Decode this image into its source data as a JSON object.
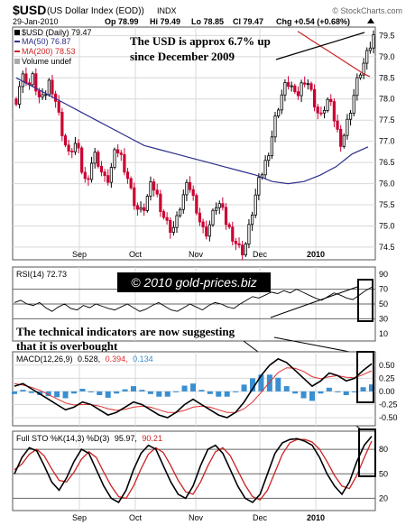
{
  "header": {
    "symbol": "$USD",
    "name": "(US Dollar Index (EOD))",
    "exchange": "INDX",
    "source": "© StockCharts.com",
    "date": "29-Jan-2010",
    "open": "Op 78.99",
    "high": "Hi 79.49",
    "low": "Lo 78.85",
    "close": "Cl 79.47",
    "change": "Chg +0.54 (+0.68%)"
  },
  "legend": {
    "price": "$USD (Daily) 79.47",
    "ma50": "MA(50) 76.87",
    "ma200": "MA(200) 78.53",
    "volume": "Volume undef"
  },
  "annotations": {
    "usd_up": "The USD is approx 6.7% up since December 2009",
    "copyright": "© 2010 gold-prices.biz",
    "overbought": "The technical indicators are now suggesting that it is overbought"
  },
  "indicator_labels": {
    "rsi": "RSI(14) 72.73",
    "macd_name": "MACD(12,26,9)",
    "macd_v1": "0.528,",
    "macd_v2": "0.394,",
    "macd_v3": "0.134",
    "sto_name": "Full STO %K(14,3) %D(3)",
    "sto_v1": "95.97,",
    "sto_v2": "90.21"
  },
  "colors": {
    "up": "#000000",
    "down": "#cc0033",
    "ma50": "#2b2e8a",
    "ma200": "#cc2222",
    "histogram": "#3a8fd0",
    "macd_signal": "#e03030",
    "grid": "#d8d8d8"
  },
  "chart_data": [
    {
      "type": "candlestick",
      "x_labels": [
        "Sep",
        "Oct",
        "Nov",
        "Dec",
        "2010"
      ],
      "y_ticks": [
        "79.5",
        "79.0",
        "78.5",
        "78.0",
        "77.5",
        "77.0",
        "76.5",
        "76.0",
        "75.5",
        "75.0",
        "74.5"
      ],
      "ylim": [
        74.2,
        79.7
      ],
      "close_path": [
        78.0,
        78.4,
        78.6,
        78.3,
        78.5,
        78.2,
        77.9,
        78.1,
        78.4,
        78.2,
        77.8,
        77.3,
        76.9,
        76.6,
        77.0,
        76.8,
        76.3,
        76.0,
        76.4,
        76.7,
        76.5,
        76.2,
        76.0,
        76.3,
        76.7,
        76.8,
        76.5,
        76.2,
        75.8,
        75.5,
        75.3,
        75.4,
        75.7,
        76.0,
        75.8,
        75.5,
        75.2,
        75.0,
        74.9,
        75.1,
        75.5,
        75.8,
        76.0,
        75.7,
        75.4,
        75.0,
        74.8,
        75.0,
        75.3,
        75.6,
        75.4,
        75.1,
        74.9,
        74.7,
        74.5,
        74.4,
        74.6,
        75.1,
        75.6,
        76.0,
        76.3,
        76.6,
        77.0,
        77.5,
        77.9,
        78.2,
        78.4,
        78.3,
        78.0,
        78.2,
        78.5,
        78.4,
        78.1,
        77.8,
        77.5,
        77.8,
        78.0,
        77.7,
        77.3,
        77.0,
        77.2,
        77.6,
        78.0,
        78.4,
        78.7,
        78.9,
        79.2,
        79.47
      ],
      "ma50": [
        78.5,
        78.3,
        78.1,
        77.9,
        77.7,
        77.5,
        77.3,
        77.1,
        76.9,
        76.8,
        76.7,
        76.6,
        76.5,
        76.4,
        76.3,
        76.2,
        76.05,
        76.0,
        76.05,
        76.2,
        76.4,
        76.7,
        76.87
      ],
      "ma200": [
        79.6,
        79.5,
        79.4,
        79.3,
        79.2,
        79.1,
        79.0,
        78.9,
        78.8,
        78.7,
        78.6,
        78.53
      ]
    },
    {
      "type": "line",
      "name": "RSI(14)",
      "y_ticks": [
        "90",
        "70",
        "50",
        "30",
        "10"
      ],
      "ylim": [
        0,
        100
      ],
      "values": [
        52,
        55,
        50,
        48,
        52,
        45,
        40,
        46,
        50,
        44,
        42,
        48,
        45,
        50,
        47,
        44,
        42,
        46,
        50,
        45,
        40,
        43,
        48,
        52,
        47,
        42,
        40,
        45,
        50,
        46,
        42,
        48,
        52,
        50,
        46,
        44,
        50,
        55,
        60,
        58,
        62,
        66,
        64,
        68,
        65,
        70,
        66,
        62,
        58,
        55,
        60,
        65,
        62,
        58,
        56,
        62,
        68,
        72.73
      ],
      "reference_lines": [
        70,
        50,
        30
      ]
    },
    {
      "type": "line",
      "name": "MACD(12,26,9)",
      "y_ticks": [
        "0.50",
        "0.25",
        "0.00",
        "-0.25",
        "-0.50"
      ],
      "ylim": [
        -0.62,
        0.72
      ],
      "macd": [
        0.1,
        0.15,
        0.05,
        -0.05,
        -0.15,
        -0.25,
        -0.35,
        -0.3,
        -0.2,
        -0.25,
        -0.35,
        -0.45,
        -0.4,
        -0.3,
        -0.2,
        -0.25,
        -0.35,
        -0.45,
        -0.5,
        -0.4,
        -0.25,
        -0.15,
        -0.25,
        -0.35,
        -0.45,
        -0.5,
        -0.4,
        -0.2,
        0.05,
        0.3,
        0.5,
        0.62,
        0.55,
        0.4,
        0.25,
        0.1,
        0.2,
        0.35,
        0.3,
        0.2,
        0.25,
        0.4,
        0.528
      ],
      "signal": [
        0.15,
        0.12,
        0.08,
        0.02,
        -0.06,
        -0.14,
        -0.22,
        -0.26,
        -0.25,
        -0.25,
        -0.28,
        -0.33,
        -0.36,
        -0.34,
        -0.3,
        -0.28,
        -0.3,
        -0.35,
        -0.4,
        -0.4,
        -0.36,
        -0.3,
        -0.28,
        -0.3,
        -0.35,
        -0.4,
        -0.4,
        -0.33,
        -0.2,
        -0.02,
        0.18,
        0.36,
        0.45,
        0.44,
        0.38,
        0.28,
        0.24,
        0.28,
        0.3,
        0.27,
        0.26,
        0.32,
        0.394
      ]
    },
    {
      "type": "line",
      "name": "Full STO %K(14,3) %D(3)",
      "y_ticks": [
        "80",
        "50",
        "20"
      ],
      "ylim": [
        5,
        100
      ],
      "k": [
        50,
        70,
        82,
        78,
        60,
        40,
        30,
        45,
        65,
        80,
        75,
        55,
        35,
        20,
        15,
        30,
        55,
        75,
        85,
        80,
        60,
        40,
        25,
        20,
        35,
        60,
        80,
        85,
        75,
        55,
        35,
        20,
        15,
        25,
        50,
        75,
        88,
        92,
        93,
        90,
        85,
        70,
        50,
        35,
        25,
        40,
        65,
        85,
        95.97
      ],
      "d": [
        55,
        62,
        74,
        80,
        72,
        56,
        42,
        40,
        52,
        68,
        77,
        70,
        52,
        35,
        22,
        20,
        35,
        56,
        74,
        82,
        76,
        60,
        42,
        28,
        25,
        40,
        60,
        77,
        82,
        72,
        54,
        36,
        22,
        18,
        30,
        52,
        74,
        88,
        92,
        92,
        89,
        80,
        65,
        48,
        35,
        32,
        48,
        70,
        90.21
      ],
      "reference_lines": [
        80,
        50,
        20
      ]
    }
  ]
}
